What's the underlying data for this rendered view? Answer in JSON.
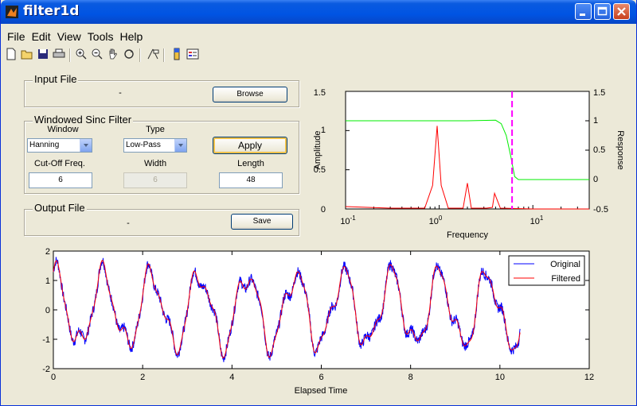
{
  "window": {
    "title": "filter1d"
  },
  "menu": [
    "File",
    "Edit",
    "View",
    "Tools",
    "Help"
  ],
  "toolbar_icons": [
    "new-file-icon",
    "open-folder-icon",
    "save-icon",
    "print-icon",
    "zoom-in-icon",
    "zoom-out-icon",
    "pan-hand-icon",
    "rotate-3d-icon",
    "data-cursor-icon",
    "colorbar-icon",
    "legend-icon"
  ],
  "input_panel": {
    "title": "Input File",
    "file_name": "-",
    "browse_label": "Browse"
  },
  "filter_panel": {
    "title": "Windowed Sinc Filter",
    "window_label": "Window",
    "window_value": "Hanning",
    "type_label": "Type",
    "type_value": "Low-Pass",
    "apply_label": "Apply",
    "cutoff_label": "Cut-Off Freq.",
    "cutoff_value": "6",
    "width_label": "Width",
    "width_value": "6",
    "length_label": "Length",
    "length_value": "48"
  },
  "output_panel": {
    "title": "Output File",
    "file_name": "-",
    "save_label": "Save"
  },
  "colors": {
    "original": "#0000ff",
    "filtered": "#ff0000",
    "response": "#00ee00",
    "cutoff": "#ff00ff"
  },
  "chart_data": [
    {
      "type": "line",
      "xlabel": "Frequency",
      "ylabel": "Amplitude",
      "y2label": "Response",
      "xscale": "log",
      "xlim": [
        0.1,
        40
      ],
      "xticks": [
        "10^-1",
        "10^0",
        "10^1"
      ],
      "ylim": [
        0,
        1.5
      ],
      "yticks": [
        "0",
        "0.5",
        "1",
        "1.5"
      ],
      "y2lim": [
        -0.5,
        1.5
      ],
      "y2ticks": [
        "-0.5",
        "0",
        "0.5",
        "1",
        "1.5"
      ],
      "cutoff_frequency": 6,
      "series": [
        {
          "axis": "left",
          "color": "red",
          "x": [
            0.1,
            0.3,
            0.7,
            0.85,
            0.95,
            1.05,
            1.25,
            1.8,
            2.0,
            2.2,
            3.2,
            3.7,
            3.9,
            4.5,
            10,
            40
          ],
          "y": [
            0.03,
            0.01,
            0.01,
            0.3,
            1.06,
            0.3,
            0.01,
            0.01,
            0.33,
            0.01,
            0.01,
            0.02,
            0.2,
            0.01,
            0.0,
            0.0
          ]
        },
        {
          "axis": "right",
          "color": "green",
          "x": [
            0.1,
            2.0,
            4.0,
            4.6,
            5.2,
            5.8,
            6.4,
            7.0,
            40
          ],
          "y": [
            1.0,
            1.0,
            1.01,
            0.95,
            0.75,
            0.4,
            0.05,
            0.0,
            0.0
          ]
        }
      ]
    },
    {
      "type": "line",
      "xlabel": "Elapsed Time",
      "ylabel": "",
      "xlim": [
        0,
        12
      ],
      "xticks": [
        0,
        2,
        4,
        6,
        8,
        10,
        12
      ],
      "ylim": [
        -2,
        2
      ],
      "yticks": [
        -2,
        -1,
        0,
        1,
        2
      ],
      "legend": "top-right",
      "series": [
        {
          "name": "Original",
          "color": "blue",
          "x_start": 0,
          "x_end": 10.45
        },
        {
          "name": "Filtered",
          "color": "red",
          "x_start": 0,
          "x_end": 10.45
        }
      ]
    }
  ]
}
